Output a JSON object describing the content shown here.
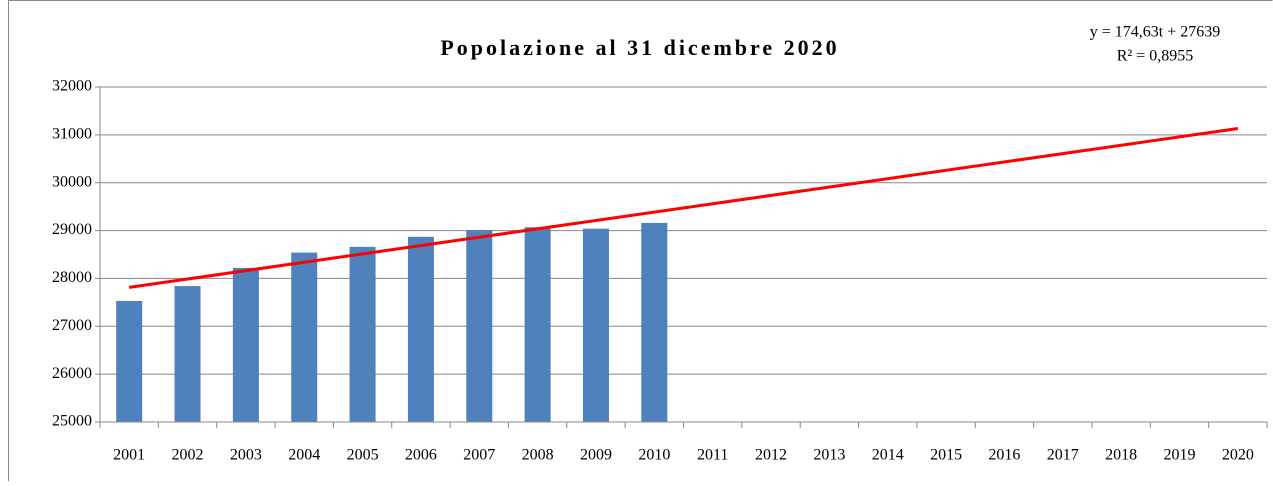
{
  "chart_data": {
    "type": "bar",
    "title": "Popolazione al 31 dicembre 2020",
    "annotations": [
      "y = 174,63t + 27639",
      "R² = 0,8955"
    ],
    "categories": [
      "2001",
      "2002",
      "2003",
      "2004",
      "2005",
      "2006",
      "2007",
      "2008",
      "2009",
      "2010",
      "2011",
      "2012",
      "2013",
      "2014",
      "2015",
      "2016",
      "2017",
      "2018",
      "2019",
      "2020"
    ],
    "values": [
      27530,
      27840,
      28220,
      28540,
      28660,
      28870,
      29010,
      29070,
      29040,
      29160,
      null,
      null,
      null,
      null,
      null,
      null,
      null,
      null,
      null,
      null
    ],
    "color": "#4f81bd",
    "trendline": {
      "color": "#ff0000",
      "start": 27814,
      "end": 31132
    },
    "ylim": [
      25000,
      32000
    ],
    "yticks": [
      25000,
      26000,
      27000,
      28000,
      29000,
      30000,
      31000,
      32000
    ],
    "grid": true
  }
}
